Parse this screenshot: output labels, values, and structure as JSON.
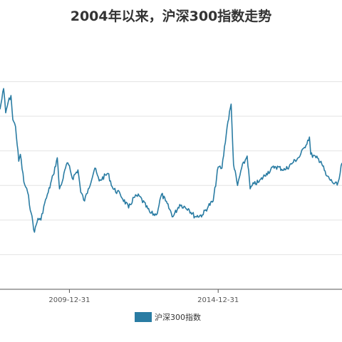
{
  "chart_data": {
    "type": "line",
    "title": "2004年以来，沪深300指数走势",
    "xlabel": "",
    "ylabel": "",
    "x_ticks": [
      "2009-12-31",
      "2014-12-31"
    ],
    "x_range": [
      "2007-09-01",
      "2019-02-28"
    ],
    "ylim": [
      0,
      7000
    ],
    "y_gridlines": [
      0,
      1000,
      2000,
      3000,
      4000,
      5000,
      6000
    ],
    "grid": true,
    "y_tick_labels_visible": false,
    "legend": "bottom",
    "color": "#2a7ca3",
    "series": [
      {
        "name": "沪深300指数",
        "points": [
          [
            "2007-09-01",
            5200
          ],
          [
            "2007-10-16",
            5800
          ],
          [
            "2007-11-10",
            5100
          ],
          [
            "2007-12-10",
            5400
          ],
          [
            "2008-01-14",
            5600
          ],
          [
            "2008-02-05",
            4900
          ],
          [
            "2008-03-10",
            4700
          ],
          [
            "2008-04-18",
            3700
          ],
          [
            "2008-05-08",
            3900
          ],
          [
            "2008-06-20",
            3100
          ],
          [
            "2008-08-05",
            2800
          ],
          [
            "2008-09-18",
            2200
          ],
          [
            "2008-10-28",
            1650
          ],
          [
            "2008-12-10",
            2050
          ],
          [
            "2009-01-15",
            2000
          ],
          [
            "2009-02-20",
            2400
          ],
          [
            "2009-04-15",
            2800
          ],
          [
            "2009-06-15",
            3300
          ],
          [
            "2009-08-04",
            3800
          ],
          [
            "2009-08-31",
            2900
          ],
          [
            "2009-10-15",
            3200
          ],
          [
            "2009-11-23",
            3600
          ],
          [
            "2009-12-31",
            3575
          ],
          [
            "2010-02-05",
            3200
          ],
          [
            "2010-04-15",
            3450
          ],
          [
            "2010-05-20",
            2800
          ],
          [
            "2010-07-05",
            2550
          ],
          [
            "2010-08-20",
            2900
          ],
          [
            "2010-11-08",
            3500
          ],
          [
            "2010-12-31",
            3130
          ],
          [
            "2011-04-18",
            3350
          ],
          [
            "2011-06-20",
            2900
          ],
          [
            "2011-09-15",
            2750
          ],
          [
            "2011-12-28",
            2350
          ],
          [
            "2012-03-01",
            2650
          ],
          [
            "2012-05-05",
            2700
          ],
          [
            "2012-09-20",
            2200
          ],
          [
            "2012-12-03",
            2150
          ],
          [
            "2013-02-05",
            2750
          ],
          [
            "2013-03-25",
            2550
          ],
          [
            "2013-06-25",
            2100
          ],
          [
            "2013-09-15",
            2450
          ],
          [
            "2013-12-31",
            2330
          ],
          [
            "2014-03-20",
            2100
          ],
          [
            "2014-06-20",
            2150
          ],
          [
            "2014-09-01",
            2400
          ],
          [
            "2014-10-31",
            2550
          ],
          [
            "2014-12-31",
            3533
          ],
          [
            "2015-02-15",
            3500
          ],
          [
            "2015-04-20",
            4700
          ],
          [
            "2015-06-08",
            5350
          ],
          [
            "2015-07-08",
            3600
          ],
          [
            "2015-08-26",
            3000
          ],
          [
            "2015-10-15",
            3500
          ],
          [
            "2015-12-22",
            3850
          ],
          [
            "2016-01-28",
            2900
          ],
          [
            "2016-03-15",
            3050
          ],
          [
            "2016-05-15",
            3100
          ],
          [
            "2016-08-15",
            3350
          ],
          [
            "2016-11-28",
            3550
          ],
          [
            "2017-03-31",
            3450
          ],
          [
            "2017-06-30",
            3650
          ],
          [
            "2017-09-30",
            3850
          ],
          [
            "2017-11-22",
            4100
          ],
          [
            "2018-01-24",
            4400
          ],
          [
            "2018-02-09",
            3900
          ],
          [
            "2018-04-15",
            3800
          ],
          [
            "2018-06-15",
            3700
          ],
          [
            "2018-08-15",
            3300
          ],
          [
            "2018-10-30",
            3100
          ],
          [
            "2018-12-31",
            3010
          ],
          [
            "2019-01-25",
            3200
          ],
          [
            "2019-02-28",
            3650
          ]
        ]
      }
    ]
  }
}
